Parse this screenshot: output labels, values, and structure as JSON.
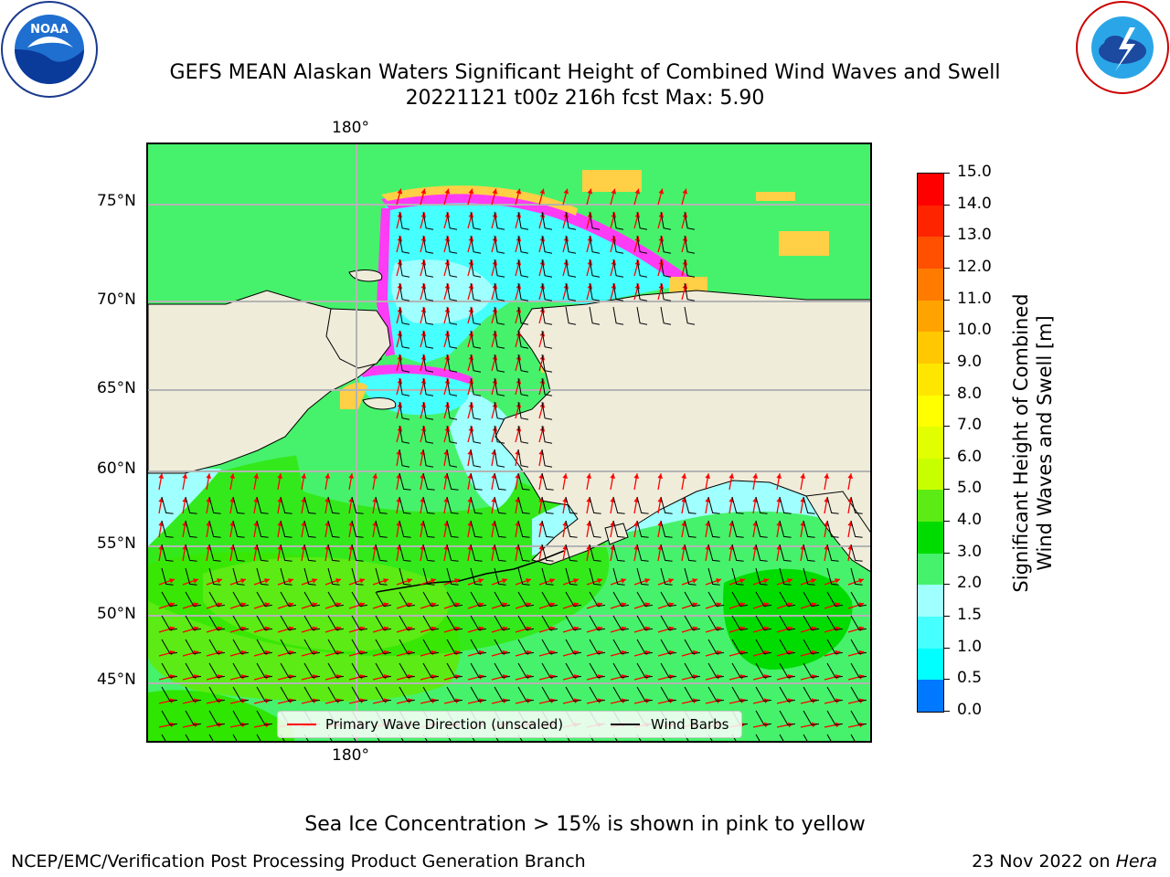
{
  "title": {
    "line1": "GEFS MEAN Alaskan Waters Significant Height of Combined Wind Waves and Swell",
    "line2": "20221121 t00z 216h fcst   Max: 5.90"
  },
  "logos": {
    "left": {
      "name": "NOAA",
      "ring_text": "NATIONAL OCEANIC AND ATMOSPHERIC ADMINISTRATION · U.S. DEPARTMENT OF COMMERCE"
    },
    "right": {
      "name": "NATIONAL WEATHER SERVICE"
    }
  },
  "map": {
    "lon_labels": {
      "top": "180°",
      "bottom": "180°"
    },
    "lat_labels": [
      "75°N",
      "70°N",
      "65°N",
      "60°N",
      "55°N",
      "50°N",
      "45°N"
    ],
    "colors": {
      "land": "#efecda",
      "ocean_2_3m": "#a0ffff",
      "ocean_1_5_2m": "#46ffff",
      "ocean_1_1_5m": "#00ffff",
      "ocean_3_4m": "#46f26b",
      "ocean_4_5m": "#2ee600",
      "ocean_5_6m": "#5ceb14",
      "sea_ice_pink": "#ff3cf5",
      "sea_ice_yellow": "#ffcf46",
      "wave_arrow": "#ff0000",
      "wind_barb": "#000000",
      "grid": "#b4b4b4"
    },
    "legend": {
      "wave": "Primary Wave Direction (unscaled)",
      "wind": "Wind Barbs"
    }
  },
  "colorbar": {
    "label_line1": "Significant Height of Combined",
    "label_line2": "Wind Waves and Swell [m]",
    "ticks": [
      "15.0",
      "14.0",
      "13.0",
      "12.0",
      "11.0",
      "10.0",
      "9.0",
      "8.0",
      "7.0",
      "6.0",
      "5.0",
      "4.0",
      "3.0",
      "2.0",
      "1.5",
      "1.0",
      "0.5",
      "0.0"
    ],
    "colors": [
      "#ff0000",
      "#ff2400",
      "#ff4f00",
      "#ff7b00",
      "#ffa300",
      "#ffc800",
      "#ffe600",
      "#ffff00",
      "#e1ff00",
      "#c8ff00",
      "#5ceb14",
      "#00dc00",
      "#46f26b",
      "#a0ffff",
      "#46ffff",
      "#00ffff",
      "#0078ff",
      "#0000ff"
    ]
  },
  "footer": {
    "ice_note": "Sea Ice Concentration > 15% is shown in pink to yellow",
    "left": "NCEP/EMC/Verification Post Processing Product Generation Branch",
    "right_date": "23 Nov 2022 on ",
    "right_machine": "Hera"
  }
}
